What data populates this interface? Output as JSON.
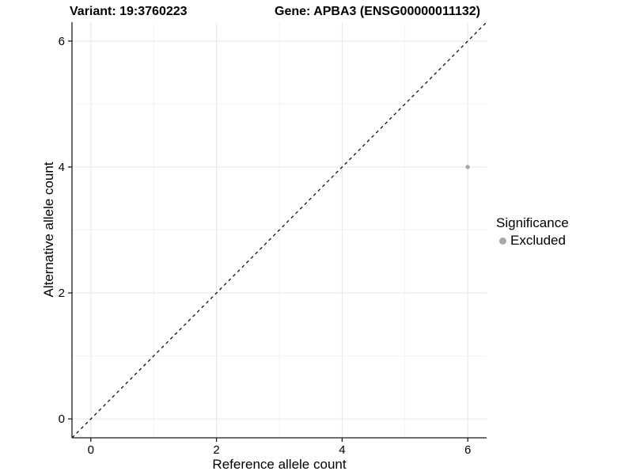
{
  "title": {
    "variant": "Variant: 19:3760223",
    "gene": "Gene: APBA3 (ENSG00000011132)"
  },
  "chart_data": {
    "type": "scatter",
    "xlabel": "Reference allele count",
    "ylabel": "Alternative allele count",
    "xlim": [
      -0.3,
      6.3
    ],
    "ylim": [
      -0.3,
      6.3
    ],
    "xticks": [
      0,
      2,
      4,
      6
    ],
    "yticks": [
      0,
      2,
      4,
      6
    ],
    "xminor": [
      1,
      3,
      5
    ],
    "yminor": [
      1,
      3,
      5
    ],
    "grid": true,
    "reference_line": {
      "type": "identity",
      "style": "dashed",
      "color": "#000000"
    },
    "series": [
      {
        "name": "Excluded",
        "color": "#a8a8a8",
        "points": [
          {
            "x": 6,
            "y": 4
          }
        ]
      }
    ],
    "legend": {
      "title": "Significance",
      "position": "right",
      "items": [
        {
          "label": "Excluded",
          "color": "#a8a8a8"
        }
      ]
    },
    "colors": {
      "axis_line": "#1a1a1a",
      "grid_major": "#e6e6e6",
      "grid_minor": "#f2f2f2",
      "tick_text": "#000000"
    }
  }
}
